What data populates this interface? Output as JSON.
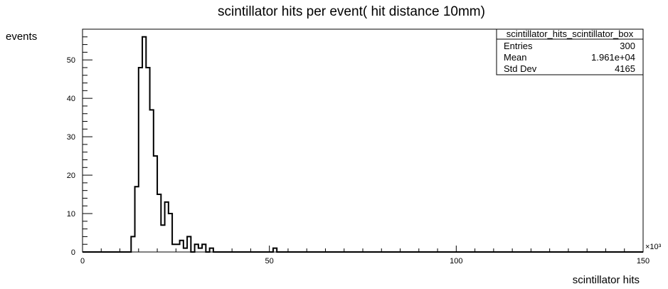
{
  "chart_data": {
    "type": "histogram",
    "title": "scintillator hits per event( hit distance 10mm)",
    "xlabel": "scintillator hits",
    "ylabel": "events",
    "x_multiplier_label": "×10³",
    "xlim": [
      0,
      150
    ],
    "ylim": [
      0,
      58
    ],
    "bin_width": 1,
    "x_ticks": [
      0,
      50,
      100,
      150
    ],
    "y_ticks": [
      0,
      10,
      20,
      30,
      40,
      50
    ],
    "grid": false,
    "bins": [
      {
        "x": 13,
        "y": 4
      },
      {
        "x": 14,
        "y": 17
      },
      {
        "x": 15,
        "y": 48
      },
      {
        "x": 16,
        "y": 56
      },
      {
        "x": 17,
        "y": 48
      },
      {
        "x": 18,
        "y": 37
      },
      {
        "x": 19,
        "y": 25
      },
      {
        "x": 20,
        "y": 15
      },
      {
        "x": 21,
        "y": 7
      },
      {
        "x": 22,
        "y": 13
      },
      {
        "x": 23,
        "y": 10
      },
      {
        "x": 24,
        "y": 2
      },
      {
        "x": 25,
        "y": 2
      },
      {
        "x": 26,
        "y": 3
      },
      {
        "x": 27,
        "y": 1
      },
      {
        "x": 28,
        "y": 4
      },
      {
        "x": 29,
        "y": 0
      },
      {
        "x": 30,
        "y": 2
      },
      {
        "x": 31,
        "y": 1
      },
      {
        "x": 32,
        "y": 2
      },
      {
        "x": 33,
        "y": 0
      },
      {
        "x": 34,
        "y": 1
      },
      {
        "x": 51,
        "y": 1
      }
    ]
  },
  "stats_box": {
    "name": "scintillator_hits_scintillator_box",
    "rows": [
      {
        "label": "Entries",
        "value": "300"
      },
      {
        "label": "Mean",
        "value": "1.961e+04"
      },
      {
        "label": "Std Dev",
        "value": "4165"
      }
    ]
  }
}
